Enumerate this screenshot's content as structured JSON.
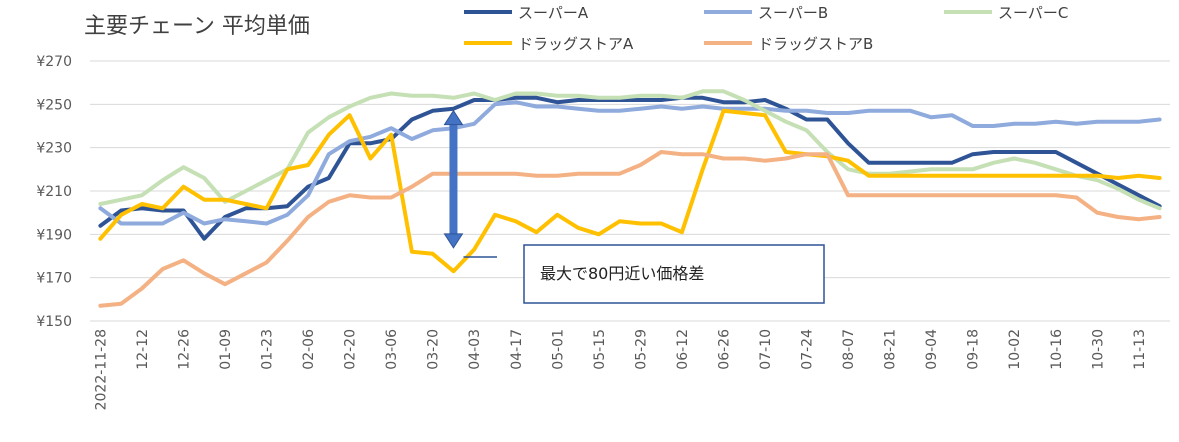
{
  "chart_data": {
    "type": "line",
    "title": "主要チェーン 平均単価",
    "xlabel": "",
    "ylabel": "",
    "ylim": [
      150,
      270
    ],
    "yticks": [
      150,
      170,
      190,
      210,
      230,
      250,
      270
    ],
    "ytick_labels": [
      "¥150",
      "¥170",
      "¥190",
      "¥210",
      "¥230",
      "¥250",
      "¥270"
    ],
    "x": [
      "2022-11-28",
      "2022-12-05",
      "2022-12-12",
      "2022-12-19",
      "2022-12-26",
      "2023-01-02",
      "2023-01-09",
      "2023-01-16",
      "2023-01-23",
      "2023-01-30",
      "2023-02-06",
      "2023-02-13",
      "2023-02-20",
      "2023-02-27",
      "2023-03-06",
      "2023-03-13",
      "2023-03-20",
      "2023-03-27",
      "2023-04-03",
      "2023-04-10",
      "2023-04-17",
      "2023-04-24",
      "2023-05-01",
      "2023-05-08",
      "2023-05-15",
      "2023-05-22",
      "2023-05-29",
      "2023-06-05",
      "2023-06-12",
      "2023-06-19",
      "2023-06-26",
      "2023-07-03",
      "2023-07-10",
      "2023-07-17",
      "2023-07-24",
      "2023-07-31",
      "2023-08-07",
      "2023-08-14",
      "2023-08-21",
      "2023-08-28",
      "2023-09-04",
      "2023-09-11",
      "2023-09-18",
      "2023-09-25",
      "2023-10-02",
      "2023-10-09",
      "2023-10-16",
      "2023-10-23",
      "2023-10-30",
      "2023-11-06",
      "2023-11-13",
      "2023-11-20"
    ],
    "xtick_labels": [
      "2022-11-28",
      "12-12",
      "12-26",
      "01-09",
      "01-23",
      "02-06",
      "02-20",
      "03-06",
      "03-20",
      "04-03",
      "04-17",
      "05-01",
      "05-15",
      "05-29",
      "06-12",
      "06-26",
      "07-10",
      "07-24",
      "08-07",
      "08-21",
      "09-04",
      "09-18",
      "10-02",
      "10-16",
      "10-30",
      "11-13"
    ],
    "legend_position": "top",
    "grid": true,
    "series": [
      {
        "name": "スーパーA",
        "color": "#2F5496",
        "values": [
          194,
          201,
          202,
          201,
          201,
          188,
          198,
          202,
          202,
          203,
          212,
          216,
          232,
          232,
          234,
          243,
          247,
          248,
          252,
          252,
          253,
          253,
          251,
          252,
          252,
          252,
          252,
          252,
          253,
          253,
          251,
          251,
          252,
          248,
          243,
          243,
          232,
          223,
          223,
          223,
          223,
          223,
          227,
          228,
          228,
          228,
          228,
          223,
          218,
          213,
          208,
          203
        ]
      },
      {
        "name": "スーパーB",
        "color": "#8FAADC",
        "values": [
          202,
          195,
          195,
          195,
          200,
          195,
          197,
          196,
          195,
          199,
          208,
          227,
          233,
          235,
          239,
          234,
          238,
          239,
          241,
          250,
          251,
          249,
          249,
          248,
          247,
          247,
          248,
          249,
          248,
          249,
          248,
          248,
          248,
          247,
          247,
          246,
          246,
          247,
          247,
          247,
          244,
          245,
          240,
          240,
          241,
          241,
          242,
          241,
          242,
          242,
          242,
          243
        ]
      },
      {
        "name": "スーパーC",
        "color": "#C5E0B4",
        "values": [
          204,
          206,
          208,
          215,
          221,
          216,
          205,
          210,
          215,
          220,
          237,
          244,
          249,
          253,
          255,
          254,
          254,
          253,
          255,
          252,
          255,
          255,
          254,
          254,
          253,
          253,
          254,
          254,
          253,
          256,
          256,
          252,
          247,
          242,
          238,
          228,
          220,
          218,
          218,
          219,
          220,
          220,
          220,
          223,
          225,
          223,
          220,
          217,
          215,
          211,
          206,
          202
        ]
      },
      {
        "name": "ドラッグストアA",
        "color": "#FFC000",
        "values": [
          188,
          199,
          204,
          202,
          212,
          206,
          206,
          204,
          202,
          220,
          222,
          236,
          245,
          225,
          236,
          182,
          181,
          173,
          183,
          199,
          196,
          191,
          199,
          193,
          190,
          196,
          195,
          195,
          191,
          220,
          247,
          246,
          245,
          228,
          227,
          226,
          224,
          217,
          217,
          217,
          217,
          217,
          217,
          217,
          217,
          217,
          217,
          217,
          217,
          216,
          217,
          216
        ]
      },
      {
        "name": "ドラッグストアB",
        "color": "#F4B183",
        "values": [
          157,
          158,
          165,
          174,
          178,
          172,
          167,
          172,
          177,
          187,
          198,
          205,
          208,
          207,
          207,
          212,
          218,
          218,
          218,
          218,
          218,
          217,
          217,
          218,
          218,
          218,
          222,
          228,
          227,
          227,
          225,
          225,
          224,
          225,
          227,
          227,
          208,
          208,
          208,
          208,
          208,
          208,
          208,
          208,
          208,
          208,
          208,
          207,
          200,
          198,
          197,
          198
        ]
      }
    ],
    "annotation": {
      "text": "最大で80円近い価格差",
      "arrow_date": "2023-03-27",
      "arrow_from": 248,
      "arrow_to": 181
    }
  }
}
